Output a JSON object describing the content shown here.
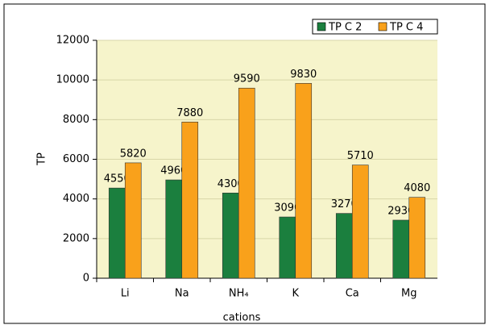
{
  "chart_data": {
    "type": "bar",
    "x_label": "cations",
    "y_label": "TP",
    "categories": [
      "Li",
      "Na",
      "NH₄",
      "K",
      "Ca",
      "Mg"
    ],
    "series": [
      {
        "name": "TP C 2",
        "color": "#1b7f3e",
        "values": [
          4550,
          4960,
          4300,
          3090,
          3270,
          2930
        ]
      },
      {
        "name": "TP C 4",
        "color": "#f9a11b",
        "values": [
          5820,
          7880,
          9590,
          9830,
          5710,
          4080
        ]
      }
    ],
    "ylim": [
      0,
      12000
    ],
    "yticks": [
      0,
      2000,
      4000,
      6000,
      8000,
      10000,
      12000
    ],
    "grid": true,
    "legend": "top-right"
  }
}
